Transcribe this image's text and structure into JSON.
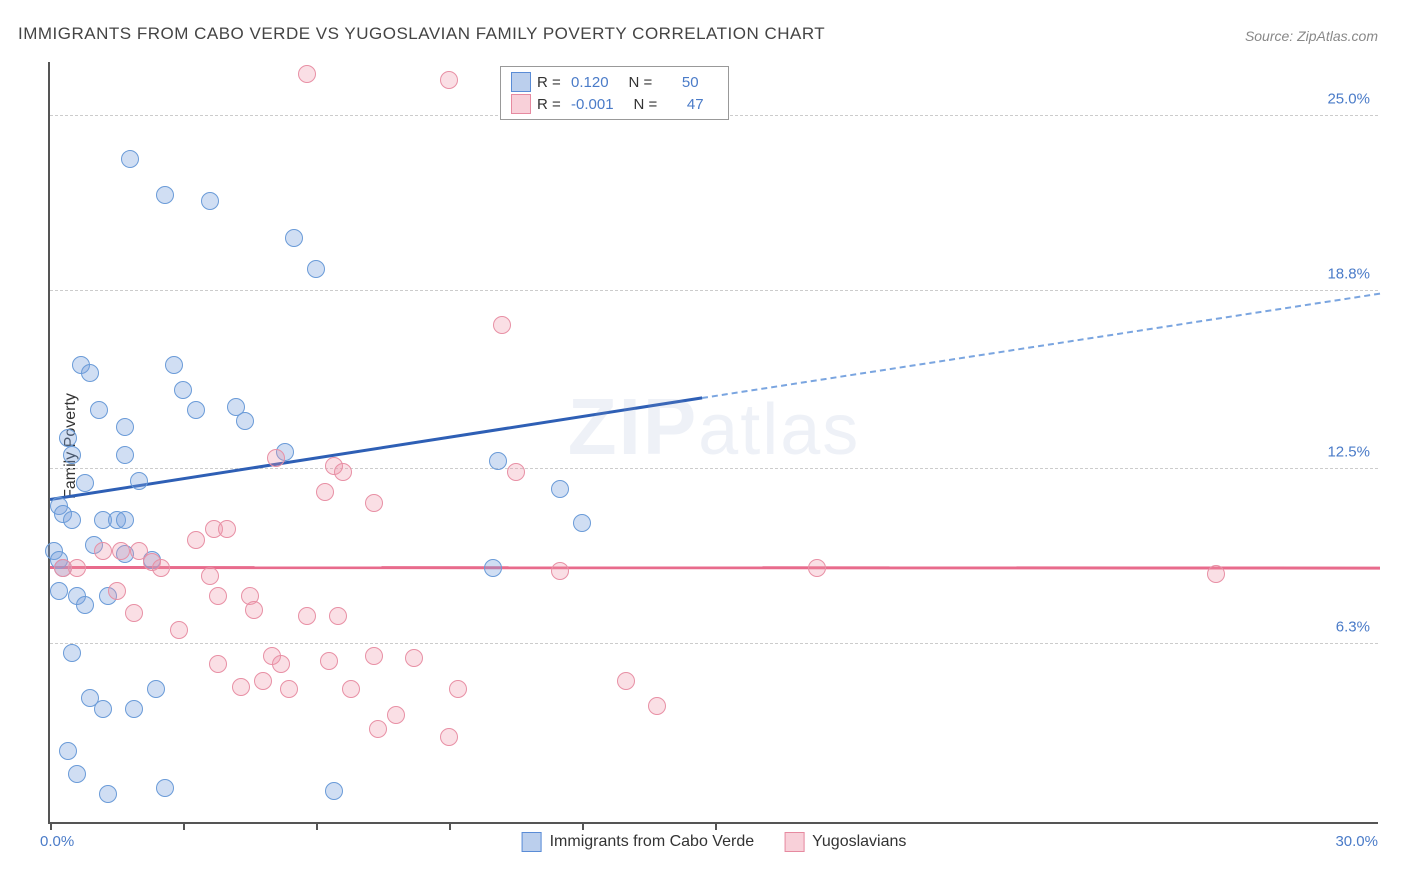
{
  "title": "IMMIGRANTS FROM CABO VERDE VS YUGOSLAVIAN FAMILY POVERTY CORRELATION CHART",
  "source": "Source: ZipAtlas.com",
  "y_axis_label": "Family Poverty",
  "watermark_bold": "ZIP",
  "watermark_rest": "atlas",
  "chart": {
    "type": "scatter",
    "x_range": [
      0,
      30
    ],
    "y_range": [
      0,
      27
    ],
    "x_min_label": "0.0%",
    "x_max_label": "30.0%",
    "y_ticks": [
      {
        "value": 6.3,
        "label": "6.3%"
      },
      {
        "value": 12.5,
        "label": "12.5%"
      },
      {
        "value": 18.8,
        "label": "18.8%"
      },
      {
        "value": 25.0,
        "label": "25.0%"
      }
    ],
    "x_tick_positions": [
      0,
      3,
      6,
      9,
      12,
      15
    ],
    "colors": {
      "blue_fill": "rgba(120,160,220,0.35)",
      "blue_stroke": "#6a9bd8",
      "blue_line": "#2e5fb5",
      "blue_dash": "#7aa5e0",
      "pink_fill": "rgba(240,150,170,0.3)",
      "pink_stroke": "#e890a5",
      "pink_line": "#e86b8c",
      "grid": "#cccccc",
      "axis": "#555555",
      "label_blue": "#4a7bc8",
      "background": "#ffffff"
    },
    "legend_top": [
      {
        "swatch": "blue",
        "r_label": "R =",
        "r_value": "0.120",
        "n_label": "N =",
        "n_value": "50"
      },
      {
        "swatch": "pink",
        "r_label": "R =",
        "r_value": "-0.001",
        "n_label": "N =",
        "n_value": "47"
      }
    ],
    "legend_bottom": [
      {
        "swatch": "blue",
        "label": "Immigrants from Cabo Verde"
      },
      {
        "swatch": "pink",
        "label": "Yugoslavians"
      }
    ],
    "series": [
      {
        "name": "cabo_verde",
        "color": "blue",
        "trend": {
          "x1": 0,
          "y1": 11.4,
          "x2_solid": 14.7,
          "y2_solid": 15.0,
          "x2": 30,
          "y2": 18.7
        },
        "points": [
          [
            1.8,
            23.5
          ],
          [
            2.6,
            22.2
          ],
          [
            3.6,
            22.0
          ],
          [
            5.5,
            20.7
          ],
          [
            6.0,
            19.6
          ],
          [
            0.7,
            16.2
          ],
          [
            0.9,
            15.9
          ],
          [
            2.8,
            16.2
          ],
          [
            1.1,
            14.6
          ],
          [
            1.7,
            14.0
          ],
          [
            3.3,
            14.6
          ],
          [
            0.4,
            13.6
          ],
          [
            0.5,
            13.0
          ],
          [
            1.7,
            13.0
          ],
          [
            4.2,
            14.7
          ],
          [
            4.4,
            14.2
          ],
          [
            5.3,
            13.1
          ],
          [
            10.1,
            12.8
          ],
          [
            11.5,
            11.8
          ],
          [
            0.2,
            11.2
          ],
          [
            0.3,
            10.9
          ],
          [
            0.5,
            10.7
          ],
          [
            1.2,
            10.7
          ],
          [
            1.5,
            10.7
          ],
          [
            1.7,
            10.7
          ],
          [
            0.1,
            9.6
          ],
          [
            0.2,
            9.3
          ],
          [
            0.3,
            9.0
          ],
          [
            1.0,
            9.8
          ],
          [
            12.0,
            10.6
          ],
          [
            10.0,
            9.0
          ],
          [
            0.2,
            8.2
          ],
          [
            0.6,
            8.0
          ],
          [
            0.8,
            7.7
          ],
          [
            1.3,
            8.0
          ],
          [
            0.9,
            4.4
          ],
          [
            1.2,
            4.0
          ],
          [
            1.9,
            4.0
          ],
          [
            2.4,
            4.7
          ],
          [
            0.4,
            2.5
          ],
          [
            0.6,
            1.7
          ],
          [
            1.3,
            1.0
          ],
          [
            2.6,
            1.2
          ],
          [
            6.4,
            1.1
          ],
          [
            1.7,
            9.5
          ],
          [
            2.3,
            9.3
          ],
          [
            0.5,
            6.0
          ],
          [
            2.0,
            12.1
          ],
          [
            3.0,
            15.3
          ],
          [
            0.8,
            12.0
          ]
        ]
      },
      {
        "name": "yugoslavians",
        "color": "pink",
        "trend": {
          "x1": 0,
          "y1": 9.0,
          "x2_solid": 30,
          "y2_solid": 8.98,
          "x2": 30,
          "y2": 8.98
        },
        "points": [
          [
            5.8,
            26.5
          ],
          [
            9.0,
            26.3
          ],
          [
            10.2,
            17.6
          ],
          [
            5.1,
            12.9
          ],
          [
            6.4,
            12.6
          ],
          [
            6.6,
            12.4
          ],
          [
            6.2,
            11.7
          ],
          [
            7.3,
            11.3
          ],
          [
            10.5,
            12.4
          ],
          [
            3.7,
            10.4
          ],
          [
            4.0,
            10.4
          ],
          [
            1.2,
            9.6
          ],
          [
            1.6,
            9.6
          ],
          [
            2.0,
            9.6
          ],
          [
            0.3,
            9.0
          ],
          [
            0.6,
            9.0
          ],
          [
            2.3,
            9.2
          ],
          [
            2.5,
            9.0
          ],
          [
            3.6,
            8.7
          ],
          [
            11.5,
            8.9
          ],
          [
            17.3,
            9.0
          ],
          [
            26.3,
            8.8
          ],
          [
            1.5,
            8.2
          ],
          [
            3.8,
            8.0
          ],
          [
            4.5,
            8.0
          ],
          [
            4.6,
            7.5
          ],
          [
            5.8,
            7.3
          ],
          [
            6.5,
            7.3
          ],
          [
            3.8,
            5.6
          ],
          [
            5.0,
            5.9
          ],
          [
            5.2,
            5.6
          ],
          [
            6.3,
            5.7
          ],
          [
            7.3,
            5.9
          ],
          [
            8.2,
            5.8
          ],
          [
            4.3,
            4.8
          ],
          [
            4.8,
            5.0
          ],
          [
            5.4,
            4.7
          ],
          [
            6.8,
            4.7
          ],
          [
            9.2,
            4.7
          ],
          [
            13.0,
            5.0
          ],
          [
            13.7,
            4.1
          ],
          [
            7.4,
            3.3
          ],
          [
            7.8,
            3.8
          ],
          [
            9.0,
            3.0
          ],
          [
            1.9,
            7.4
          ],
          [
            2.9,
            6.8
          ],
          [
            3.3,
            10.0
          ]
        ]
      }
    ]
  }
}
